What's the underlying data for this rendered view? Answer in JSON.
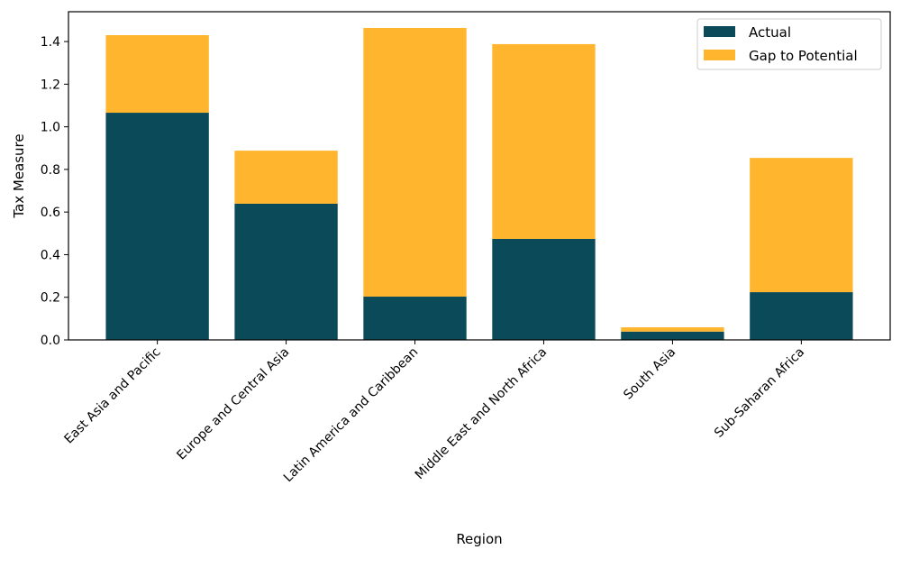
{
  "chart_data": {
    "type": "bar",
    "stacked": true,
    "title": "",
    "xlabel": "Region",
    "ylabel": "Tax Measure",
    "categories": [
      "East Asia and Pacific",
      "Europe and Central Asia",
      "Latin America and Caribbean",
      "Middle East and North Africa",
      "South Asia",
      "Sub-Saharan Africa"
    ],
    "series": [
      {
        "name": "Actual",
        "color": "#0b4a59",
        "values": [
          1.066,
          0.639,
          0.203,
          0.474,
          0.039,
          0.224
        ]
      },
      {
        "name": "Gap to Potential",
        "color": "#ffb52e",
        "values": [
          0.364,
          0.249,
          1.261,
          0.914,
          0.02,
          0.63
        ]
      }
    ],
    "ylim": [
      0,
      1.54
    ],
    "yticks": [
      "0.0",
      "0.2",
      "0.4",
      "0.6",
      "0.8",
      "1.0",
      "1.2",
      "1.4"
    ],
    "grid": false,
    "legend_position": "top-right"
  }
}
